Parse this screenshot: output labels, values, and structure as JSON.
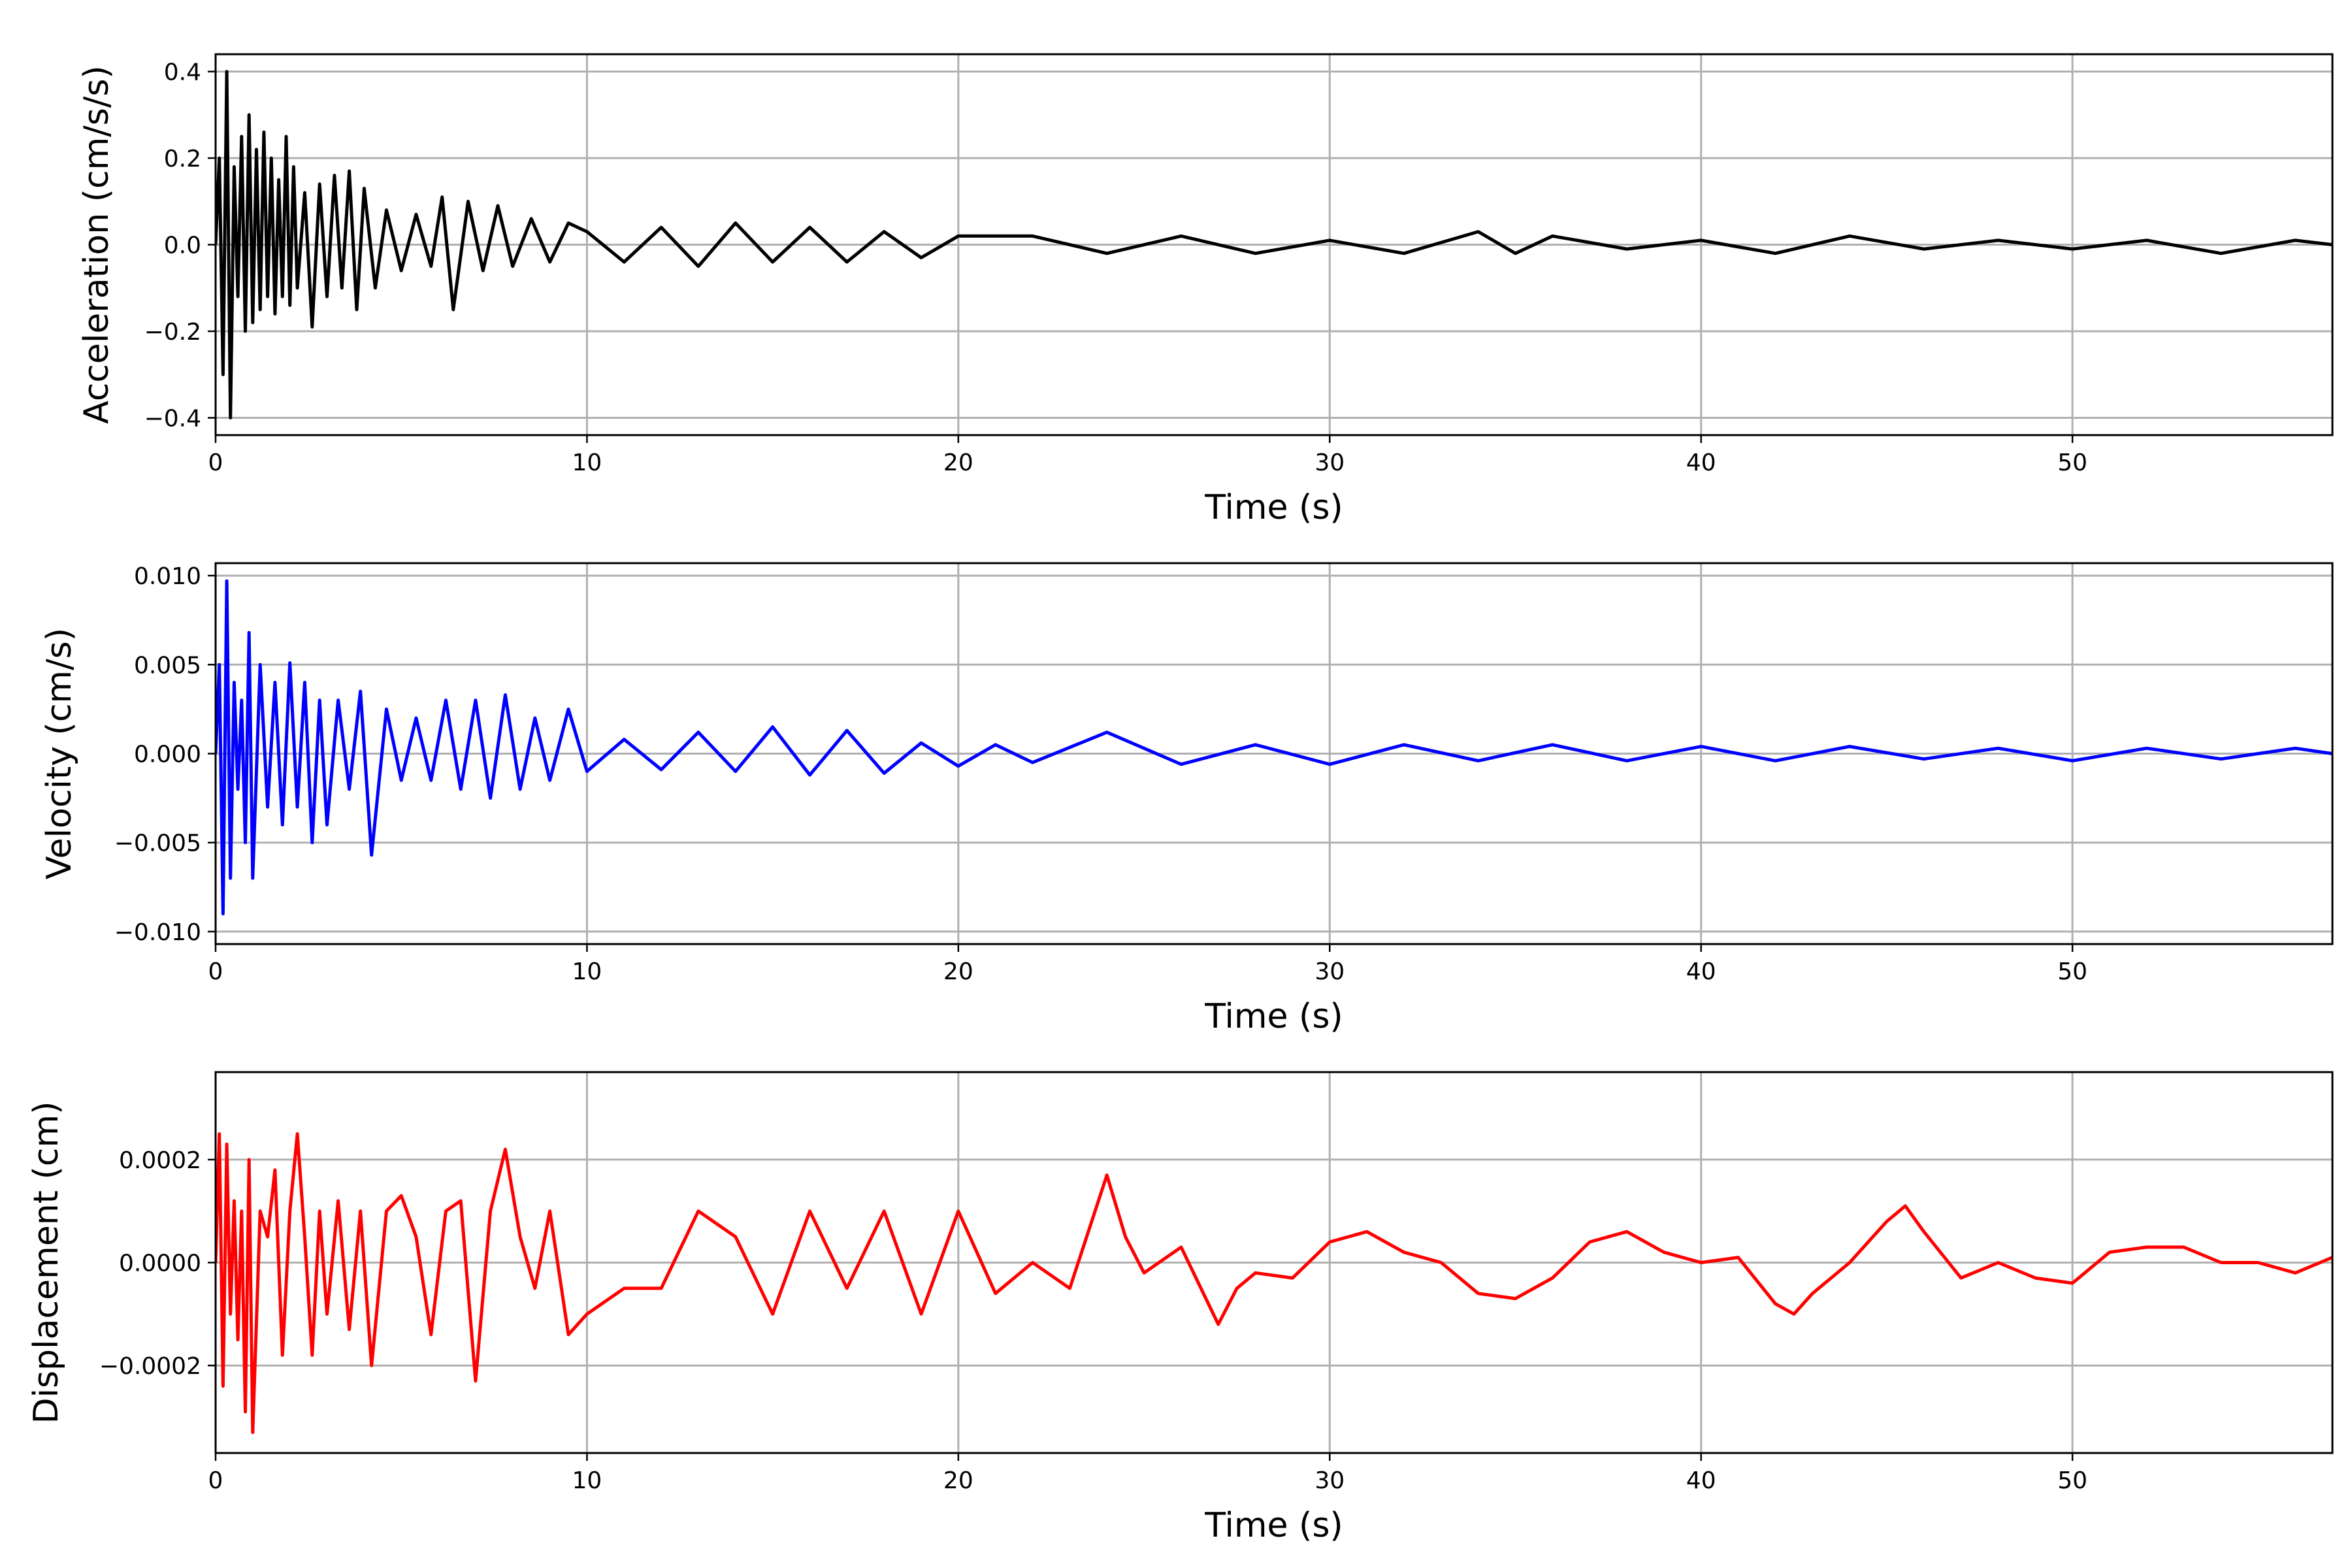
{
  "chart_data": [
    {
      "type": "line",
      "title": "",
      "xlabel": "Time (s)",
      "ylabel": "Acceleration (cm/s/s)",
      "xlim": [
        0,
        57
      ],
      "ylim": [
        -0.44,
        0.44
      ],
      "xticks": [
        0,
        10,
        20,
        30,
        40,
        50
      ],
      "xtick_labels": [
        "0",
        "10",
        "20",
        "30",
        "40",
        "50"
      ],
      "yticks": [
        -0.4,
        -0.2,
        0.0,
        0.2,
        0.4
      ],
      "ytick_labels": [
        "−0.4",
        "−0.2",
        "0.0",
        "0.2",
        "0.4"
      ],
      "grid": true,
      "legend": "none",
      "series": [
        {
          "color": "#000000",
          "x": [
            0,
            0.1,
            0.2,
            0.3,
            0.4,
            0.5,
            0.6,
            0.7,
            0.8,
            0.9,
            1.0,
            1.1,
            1.2,
            1.3,
            1.4,
            1.5,
            1.6,
            1.7,
            1.8,
            1.9,
            2.0,
            2.1,
            2.2,
            2.4,
            2.6,
            2.8,
            3.0,
            3.2,
            3.4,
            3.6,
            3.8,
            4.0,
            4.3,
            4.6,
            5.0,
            5.4,
            5.8,
            6.1,
            6.4,
            6.8,
            7.2,
            7.6,
            8.0,
            8.5,
            9.0,
            9.5,
            10,
            11,
            12,
            13,
            14,
            15,
            16,
            17,
            18,
            19,
            20,
            22,
            24,
            26,
            28,
            30,
            32,
            34,
            35,
            36,
            38,
            40,
            42,
            44,
            46,
            48,
            50,
            52,
            54,
            56,
            57
          ],
          "y": [
            0,
            0.2,
            -0.3,
            0.4,
            -0.4,
            0.18,
            -0.12,
            0.25,
            -0.2,
            0.3,
            -0.18,
            0.22,
            -0.15,
            0.26,
            -0.12,
            0.2,
            -0.16,
            0.15,
            -0.12,
            0.25,
            -0.14,
            0.18,
            -0.1,
            0.12,
            -0.19,
            0.14,
            -0.12,
            0.16,
            -0.1,
            0.17,
            -0.15,
            0.13,
            -0.1,
            0.08,
            -0.06,
            0.07,
            -0.05,
            0.11,
            -0.15,
            0.1,
            -0.06,
            0.09,
            -0.05,
            0.06,
            -0.04,
            0.05,
            0.03,
            -0.04,
            0.04,
            -0.05,
            0.05,
            -0.04,
            0.04,
            -0.04,
            0.03,
            -0.03,
            0.02,
            0.02,
            -0.02,
            0.02,
            -0.02,
            0.01,
            -0.02,
            0.03,
            -0.02,
            0.02,
            -0.01,
            0.01,
            -0.02,
            0.02,
            -0.01,
            0.01,
            -0.01,
            0.01,
            -0.02,
            0.01,
            0
          ]
        }
      ]
    },
    {
      "type": "line",
      "title": "",
      "xlabel": "Time (s)",
      "ylabel": "Velocity (cm/s)",
      "xlim": [
        0,
        57
      ],
      "ylim": [
        -0.0107,
        0.0107
      ],
      "xticks": [
        0,
        10,
        20,
        30,
        40,
        50
      ],
      "xtick_labels": [
        "0",
        "10",
        "20",
        "30",
        "40",
        "50"
      ],
      "yticks": [
        -0.01,
        -0.005,
        0.0,
        0.005,
        0.01
      ],
      "ytick_labels": [
        "−0.010",
        "−0.005",
        "0.000",
        "0.005",
        "0.010"
      ],
      "grid": true,
      "legend": "none",
      "series": [
        {
          "color": "#0000ff",
          "x": [
            0,
            0.1,
            0.2,
            0.3,
            0.4,
            0.5,
            0.6,
            0.7,
            0.8,
            0.9,
            1.0,
            1.2,
            1.4,
            1.6,
            1.8,
            2.0,
            2.2,
            2.4,
            2.6,
            2.8,
            3.0,
            3.3,
            3.6,
            3.9,
            4.2,
            4.6,
            5.0,
            5.4,
            5.8,
            6.2,
            6.6,
            7.0,
            7.4,
            7.8,
            8.2,
            8.6,
            9.0,
            9.5,
            10,
            11,
            12,
            13,
            14,
            15,
            16,
            17,
            18,
            19,
            20,
            21,
            22,
            24,
            26,
            28,
            30,
            32,
            34,
            36,
            38,
            40,
            42,
            44,
            46,
            48,
            50,
            52,
            54,
            56,
            57
          ],
          "y": [
            0,
            0.005,
            -0.009,
            0.0097,
            -0.007,
            0.004,
            -0.002,
            0.003,
            -0.005,
            0.0068,
            -0.007,
            0.005,
            -0.003,
            0.004,
            -0.004,
            0.0051,
            -0.003,
            0.004,
            -0.005,
            0.003,
            -0.004,
            0.003,
            -0.002,
            0.0035,
            -0.0057,
            0.0025,
            -0.0015,
            0.002,
            -0.0015,
            0.003,
            -0.002,
            0.003,
            -0.0025,
            0.0033,
            -0.002,
            0.002,
            -0.0015,
            0.0025,
            -0.001,
            0.0008,
            -0.0009,
            0.0012,
            -0.001,
            0.0015,
            -0.0012,
            0.0013,
            -0.0011,
            0.0006,
            -0.0007,
            0.0005,
            -0.0005,
            0.0012,
            -0.0006,
            0.0005,
            -0.0006,
            0.0005,
            -0.0004,
            0.0005,
            -0.0004,
            0.0004,
            -0.0004,
            0.0004,
            -0.0003,
            0.0003,
            -0.0004,
            0.0003,
            -0.0003,
            0.0003,
            0
          ]
        }
      ]
    },
    {
      "type": "line",
      "title": "",
      "xlabel": "Time (s)",
      "ylabel": "Displacement (cm)",
      "xlim": [
        0,
        57
      ],
      "ylim": [
        -0.00037,
        0.00037
      ],
      "xticks": [
        0,
        10,
        20,
        30,
        40,
        50
      ],
      "xtick_labels": [
        "0",
        "10",
        "20",
        "30",
        "40",
        "50"
      ],
      "yticks": [
        -0.0002,
        0.0,
        0.0002
      ],
      "ytick_labels": [
        "−0.0002",
        "0.0000",
        "0.0002"
      ],
      "grid": true,
      "legend": "none",
      "series": [
        {
          "color": "#ff0000",
          "x": [
            0,
            0.1,
            0.2,
            0.3,
            0.4,
            0.5,
            0.6,
            0.7,
            0.8,
            0.9,
            1.0,
            1.2,
            1.4,
            1.6,
            1.8,
            2.0,
            2.2,
            2.4,
            2.6,
            2.8,
            3.0,
            3.3,
            3.6,
            3.9,
            4.2,
            4.6,
            5.0,
            5.4,
            5.8,
            6.2,
            6.6,
            7.0,
            7.4,
            7.8,
            8.2,
            8.6,
            9.0,
            9.5,
            10,
            11,
            12,
            13,
            14,
            15,
            16,
            17,
            18,
            19,
            20,
            21,
            22,
            23,
            24,
            24.5,
            25,
            26,
            27,
            27.5,
            28,
            29,
            30,
            31,
            32,
            33,
            34,
            35,
            36,
            37,
            38,
            39,
            40,
            41,
            42,
            42.5,
            43,
            44,
            45,
            45.5,
            46,
            47,
            48,
            49,
            50,
            51,
            52,
            53,
            54,
            55,
            56,
            57
          ],
          "y": [
            0,
            0.00025,
            -0.00024,
            0.00023,
            -0.0001,
            0.00012,
            -0.00015,
            0.0001,
            -0.00029,
            0.0002,
            -0.00033,
            0.0001,
            5e-05,
            0.00018,
            -0.00018,
            0.0001,
            0.00025,
            5e-05,
            -0.00018,
            0.0001,
            -0.0001,
            0.00012,
            -0.00013,
            0.0001,
            -0.0002,
            0.0001,
            0.00013,
            5e-05,
            -0.00014,
            0.0001,
            0.00012,
            -0.00023,
            0.0001,
            0.00022,
            5e-05,
            -5e-05,
            0.0001,
            -0.00014,
            -0.0001,
            -5e-05,
            -5e-05,
            0.0001,
            5e-05,
            -0.0001,
            0.0001,
            -5e-05,
            0.0001,
            -0.0001,
            0.0001,
            -6e-05,
            0.0,
            -5e-05,
            0.00017,
            5e-05,
            -2e-05,
            3e-05,
            -0.00012,
            -5e-05,
            -2e-05,
            -3e-05,
            4e-05,
            6e-05,
            2e-05,
            0.0,
            -6e-05,
            -7e-05,
            -3e-05,
            4e-05,
            6e-05,
            2e-05,
            0.0,
            1e-05,
            -8e-05,
            -0.0001,
            -6e-05,
            0.0,
            8e-05,
            0.00011,
            6e-05,
            -3e-05,
            0.0,
            -3e-05,
            -4e-05,
            2e-05,
            3e-05,
            3e-05,
            0.0,
            0.0,
            -2e-05,
            1e-05
          ]
        }
      ]
    }
  ]
}
